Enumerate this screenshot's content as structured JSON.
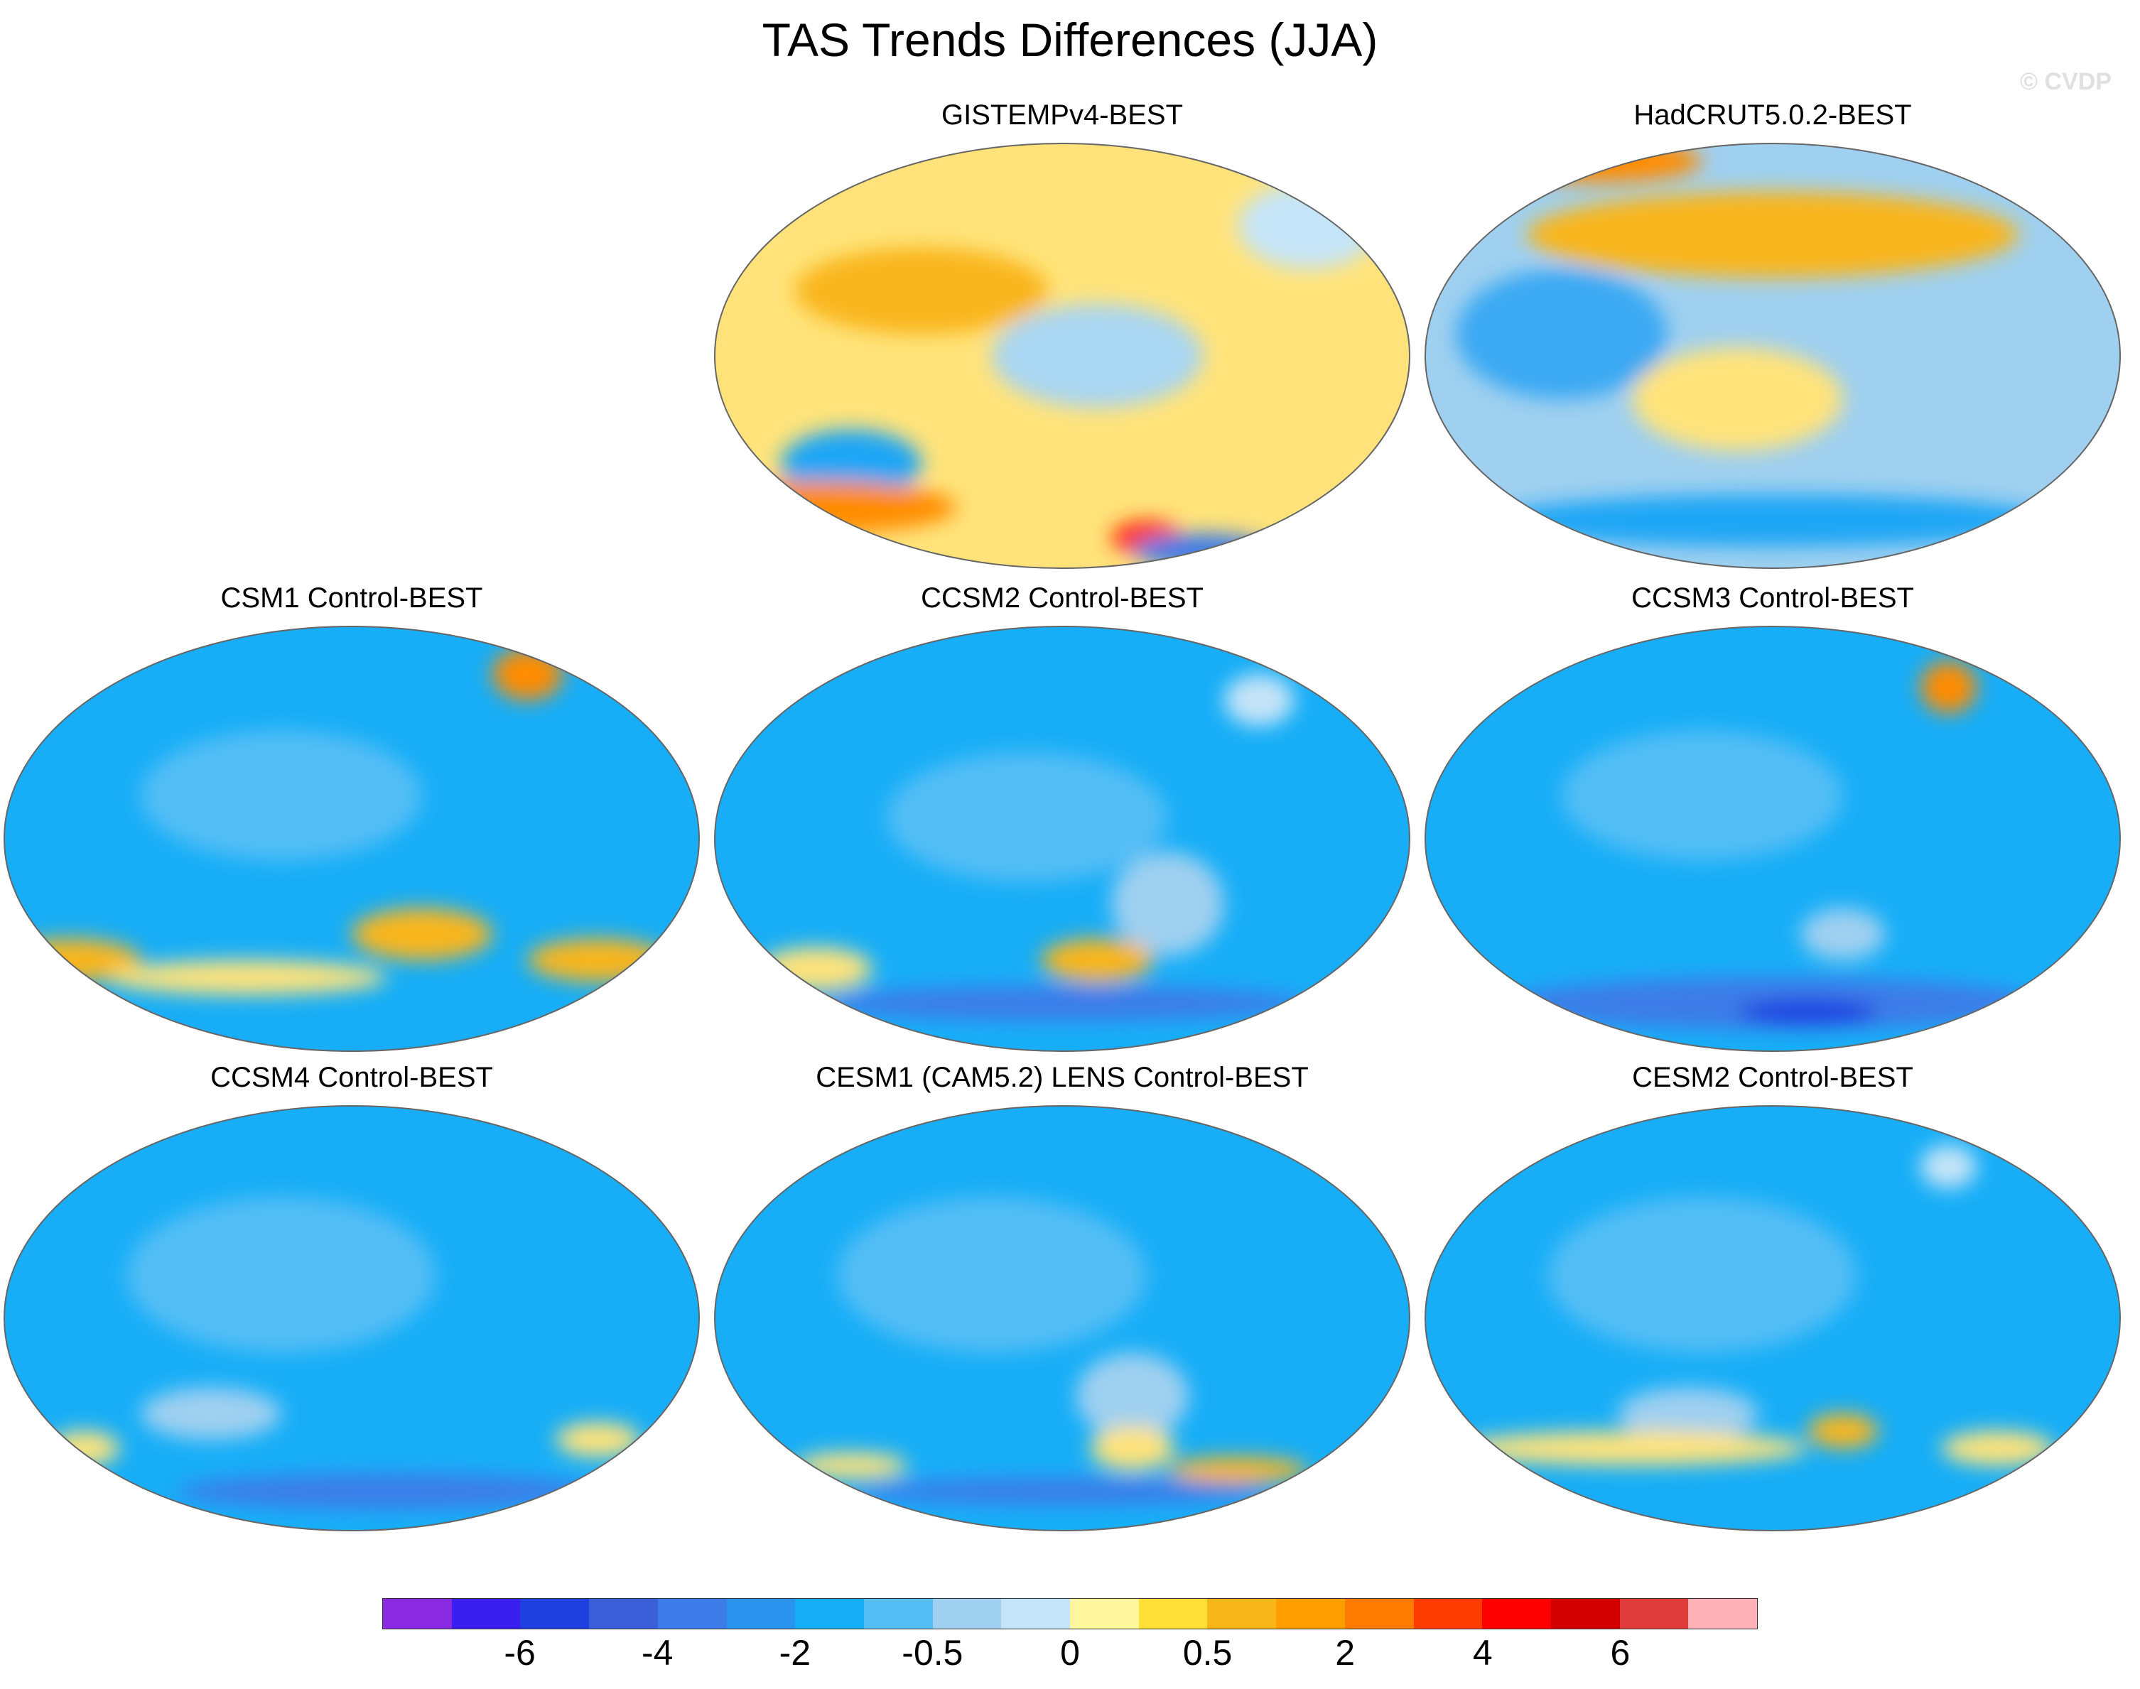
{
  "title": "TAS Trends Differences (JJA)",
  "watermark": "© CVDP",
  "panels": [
    {
      "title": "GISTEMPv4-BEST",
      "bg": "#ffe37a",
      "blobs": [
        [
          "#f9b61a",
          0.3,
          0.35,
          0.18,
          0.1
        ],
        [
          "#a9d6f2",
          0.55,
          0.5,
          0.15,
          0.12
        ],
        [
          "#1ea6f5",
          0.2,
          0.75,
          0.1,
          0.08
        ],
        [
          "#ff8c00",
          0.15,
          0.85,
          0.2,
          0.06
        ],
        [
          "#ff2a00",
          0.62,
          0.92,
          0.05,
          0.04
        ],
        [
          "#3c7be8",
          0.7,
          0.95,
          0.1,
          0.04
        ],
        [
          "#c5e4f7",
          0.85,
          0.2,
          0.1,
          0.1
        ]
      ]
    },
    {
      "title": "HadCRUT5.0.2-BEST",
      "bg": "#9fd0f0",
      "blobs": [
        [
          "#f9b61a",
          0.5,
          0.22,
          0.35,
          0.1
        ],
        [
          "#ffe37a",
          0.45,
          0.6,
          0.15,
          0.12
        ],
        [
          "#3aa9f3",
          0.2,
          0.45,
          0.15,
          0.15
        ],
        [
          "#1ea6f5",
          0.5,
          0.88,
          0.4,
          0.06
        ],
        [
          "#ff8c00",
          0.25,
          0.05,
          0.15,
          0.05
        ]
      ]
    },
    {
      "title": "CSM1 Control-BEST",
      "bg": "#17aef7",
      "blobs": [
        [
          "#53bef5",
          0.4,
          0.4,
          0.2,
          0.15
        ],
        [
          "#f9b61a",
          0.1,
          0.78,
          0.1,
          0.05
        ],
        [
          "#f9b61a",
          0.6,
          0.72,
          0.1,
          0.06
        ],
        [
          "#f9b61a",
          0.85,
          0.78,
          0.1,
          0.05
        ],
        [
          "#ffe37a",
          0.35,
          0.82,
          0.2,
          0.04
        ],
        [
          "#ff8c00",
          0.75,
          0.12,
          0.05,
          0.06
        ]
      ]
    },
    {
      "title": "CCSM2 Control-BEST",
      "bg": "#17aef7",
      "blobs": [
        [
          "#53bef5",
          0.45,
          0.45,
          0.2,
          0.15
        ],
        [
          "#9fd0f0",
          0.65,
          0.65,
          0.08,
          0.12
        ],
        [
          "#ffe37a",
          0.15,
          0.8,
          0.08,
          0.05
        ],
        [
          "#f9b61a",
          0.55,
          0.78,
          0.08,
          0.05
        ],
        [
          "#3c7be8",
          0.5,
          0.88,
          0.35,
          0.04
        ],
        [
          "#c5e4f7",
          0.78,
          0.18,
          0.05,
          0.06
        ]
      ]
    },
    {
      "title": "CCSM3 Control-BEST",
      "bg": "#17aef7",
      "blobs": [
        [
          "#53bef5",
          0.4,
          0.4,
          0.2,
          0.15
        ],
        [
          "#9fd0f0",
          0.6,
          0.72,
          0.06,
          0.06
        ],
        [
          "#3c7be8",
          0.5,
          0.88,
          0.38,
          0.06
        ],
        [
          "#1f3fe0",
          0.55,
          0.9,
          0.1,
          0.03
        ],
        [
          "#ff8c00",
          0.75,
          0.15,
          0.04,
          0.06
        ]
      ]
    },
    {
      "title": "CCSM4 Control-BEST",
      "bg": "#17aef7",
      "blobs": [
        [
          "#53bef5",
          0.4,
          0.4,
          0.22,
          0.18
        ],
        [
          "#9fd0f0",
          0.3,
          0.72,
          0.1,
          0.06
        ],
        [
          "#ffe37a",
          0.12,
          0.8,
          0.05,
          0.04
        ],
        [
          "#ffe37a",
          0.85,
          0.78,
          0.06,
          0.04
        ],
        [
          "#3c7be8",
          0.55,
          0.9,
          0.3,
          0.04
        ]
      ]
    },
    {
      "title": "CESM1 (CAM5.2) LENS Control-BEST",
      "bg": "#17aef7",
      "blobs": [
        [
          "#53bef5",
          0.4,
          0.4,
          0.22,
          0.18
        ],
        [
          "#9fd0f0",
          0.6,
          0.68,
          0.08,
          0.1
        ],
        [
          "#ffe37a",
          0.6,
          0.8,
          0.06,
          0.05
        ],
        [
          "#f9b61a",
          0.75,
          0.85,
          0.1,
          0.03
        ],
        [
          "#ffe37a",
          0.2,
          0.84,
          0.08,
          0.03
        ],
        [
          "#3c7be8",
          0.5,
          0.9,
          0.3,
          0.03
        ]
      ]
    },
    {
      "title": "CESM2 Control-BEST",
      "bg": "#17aef7",
      "blobs": [
        [
          "#53bef5",
          0.4,
          0.4,
          0.22,
          0.18
        ],
        [
          "#9fd0f0",
          0.38,
          0.72,
          0.1,
          0.06
        ],
        [
          "#ffe37a",
          0.3,
          0.8,
          0.25,
          0.04
        ],
        [
          "#f9b61a",
          0.6,
          0.76,
          0.05,
          0.04
        ],
        [
          "#ffe37a",
          0.82,
          0.8,
          0.08,
          0.04
        ],
        [
          "#c5e4f7",
          0.75,
          0.15,
          0.04,
          0.05
        ]
      ]
    }
  ],
  "colorbar": {
    "colors": [
      "#8a2be2",
      "#3b1ef0",
      "#1f3fe0",
      "#3a5fd9",
      "#3c7be8",
      "#2a94ef",
      "#17aef7",
      "#53bef5",
      "#9fd0f0",
      "#c5e4f7",
      "#fff79e",
      "#ffe037",
      "#f9b61a",
      "#ff9e00",
      "#ff7a00",
      "#ff3c00",
      "#ff0000",
      "#d40000",
      "#e03c3c",
      "#ffb3b8"
    ],
    "labels": [
      "-6",
      "-4",
      "-2",
      "-0.5",
      "0",
      "0.5",
      "2",
      "4",
      "6"
    ]
  }
}
